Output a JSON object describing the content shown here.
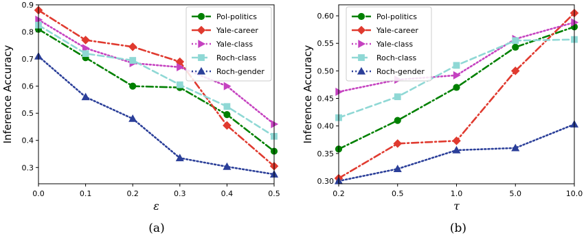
{
  "chart_data": [
    {
      "type": "line",
      "caption": "(a)",
      "xlabel": "ε",
      "ylabel": "Inference Accuracy",
      "x": [
        0.0,
        0.1,
        0.2,
        0.3,
        0.4,
        0.5
      ],
      "x_tick_labels": [
        "0.0",
        "0.1",
        "0.2",
        "0.3",
        "0.4",
        "0.5"
      ],
      "xlim": [
        0.0,
        0.5
      ],
      "ylim": [
        0.24,
        0.9
      ],
      "y_ticks": [
        "0.3",
        "0.4",
        "0.5",
        "0.6",
        "0.7",
        "0.8",
        "0.9"
      ],
      "grid": false,
      "legend_position": "top-right",
      "series": [
        {
          "name": "Pol-politics",
          "color": "#008000",
          "linestyle": "dashdot",
          "marker": "circle",
          "values": [
            0.81,
            0.705,
            0.6,
            0.595,
            0.495,
            0.36
          ]
        },
        {
          "name": "Yale-career",
          "color": "#e03a2f",
          "linestyle": "dashdot",
          "marker": "diamond",
          "values": [
            0.88,
            0.77,
            0.745,
            0.69,
            0.455,
            0.305
          ]
        },
        {
          "name": "Yale-class",
          "color": "#c542c0",
          "linestyle": "dotted",
          "marker": "triangle-right",
          "values": [
            0.845,
            0.74,
            0.685,
            0.67,
            0.6,
            0.46
          ]
        },
        {
          "name": "Roch-class",
          "color": "#8fd8d5",
          "linestyle": "dashed",
          "marker": "square",
          "values": [
            0.825,
            0.72,
            0.695,
            0.605,
            0.525,
            0.415
          ]
        },
        {
          "name": "Roch-gender",
          "color": "#2b3f99",
          "linestyle": "dotted",
          "marker": "triangle-up",
          "values": [
            0.71,
            0.56,
            0.48,
            0.335,
            0.303,
            0.275
          ]
        }
      ]
    },
    {
      "type": "line",
      "caption": "(b)",
      "xlabel": "τ",
      "ylabel": "Inference Accuracy",
      "categories": [
        "0.2",
        "0.5",
        "1.0",
        "5.0",
        "10.0"
      ],
      "x_scale": "categorical",
      "ylim": [
        0.295,
        0.62
      ],
      "y_ticks": [
        "0.30",
        "0.35",
        "0.40",
        "0.45",
        "0.50",
        "0.55",
        "0.60"
      ],
      "grid": false,
      "legend_position": "top-left",
      "series": [
        {
          "name": "Pol-politics",
          "color": "#008000",
          "linestyle": "dashdot",
          "marker": "circle",
          "values": [
            0.358,
            0.41,
            0.47,
            0.543,
            0.58
          ]
        },
        {
          "name": "Yale-career",
          "color": "#e03a2f",
          "linestyle": "dashdot",
          "marker": "diamond",
          "values": [
            0.305,
            0.368,
            0.373,
            0.5,
            0.605
          ]
        },
        {
          "name": "Yale-class",
          "color": "#c542c0",
          "linestyle": "dotted",
          "marker": "triangle-right",
          "values": [
            0.462,
            0.484,
            0.492,
            0.558,
            0.588
          ]
        },
        {
          "name": "Roch-class",
          "color": "#8fd8d5",
          "linestyle": "dashed",
          "marker": "square",
          "values": [
            0.415,
            0.453,
            0.51,
            0.555,
            0.557
          ]
        },
        {
          "name": "Roch-gender",
          "color": "#2b3f99",
          "linestyle": "dotted",
          "marker": "triangle-up",
          "values": [
            0.3,
            0.322,
            0.356,
            0.36,
            0.403
          ]
        }
      ]
    }
  ]
}
